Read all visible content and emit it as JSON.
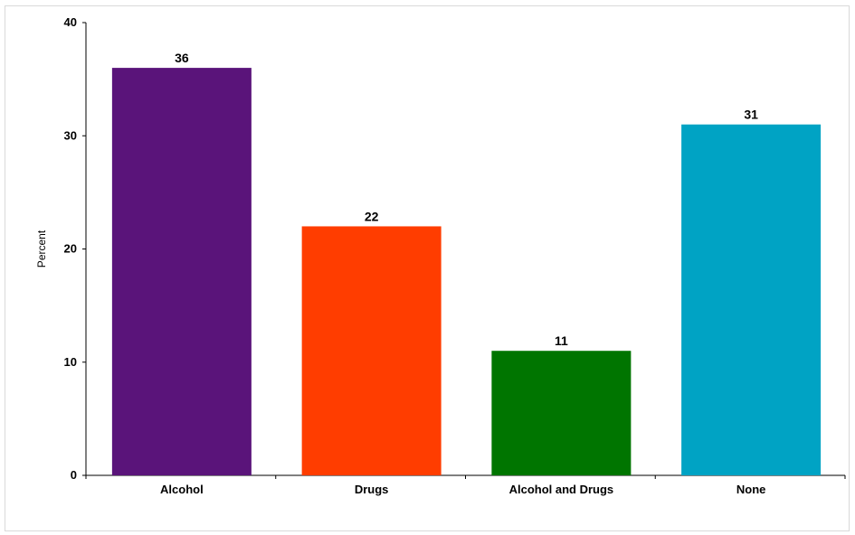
{
  "chart_data": {
    "type": "bar",
    "categories": [
      "Alcohol",
      "Drugs",
      "Alcohol and Drugs",
      "None"
    ],
    "values": [
      36,
      22,
      11,
      31
    ],
    "colors": [
      "#5a147a",
      "#ff3d00",
      "#007500",
      "#00a3c4"
    ],
    "data_labels": [
      "36",
      "22",
      "11",
      "31"
    ],
    "title": "",
    "xlabel": "",
    "ylabel": "Percent",
    "ylim": [
      0,
      40
    ],
    "yticks": [
      0,
      10,
      20,
      30,
      40
    ],
    "grid": false,
    "legend": "none"
  }
}
